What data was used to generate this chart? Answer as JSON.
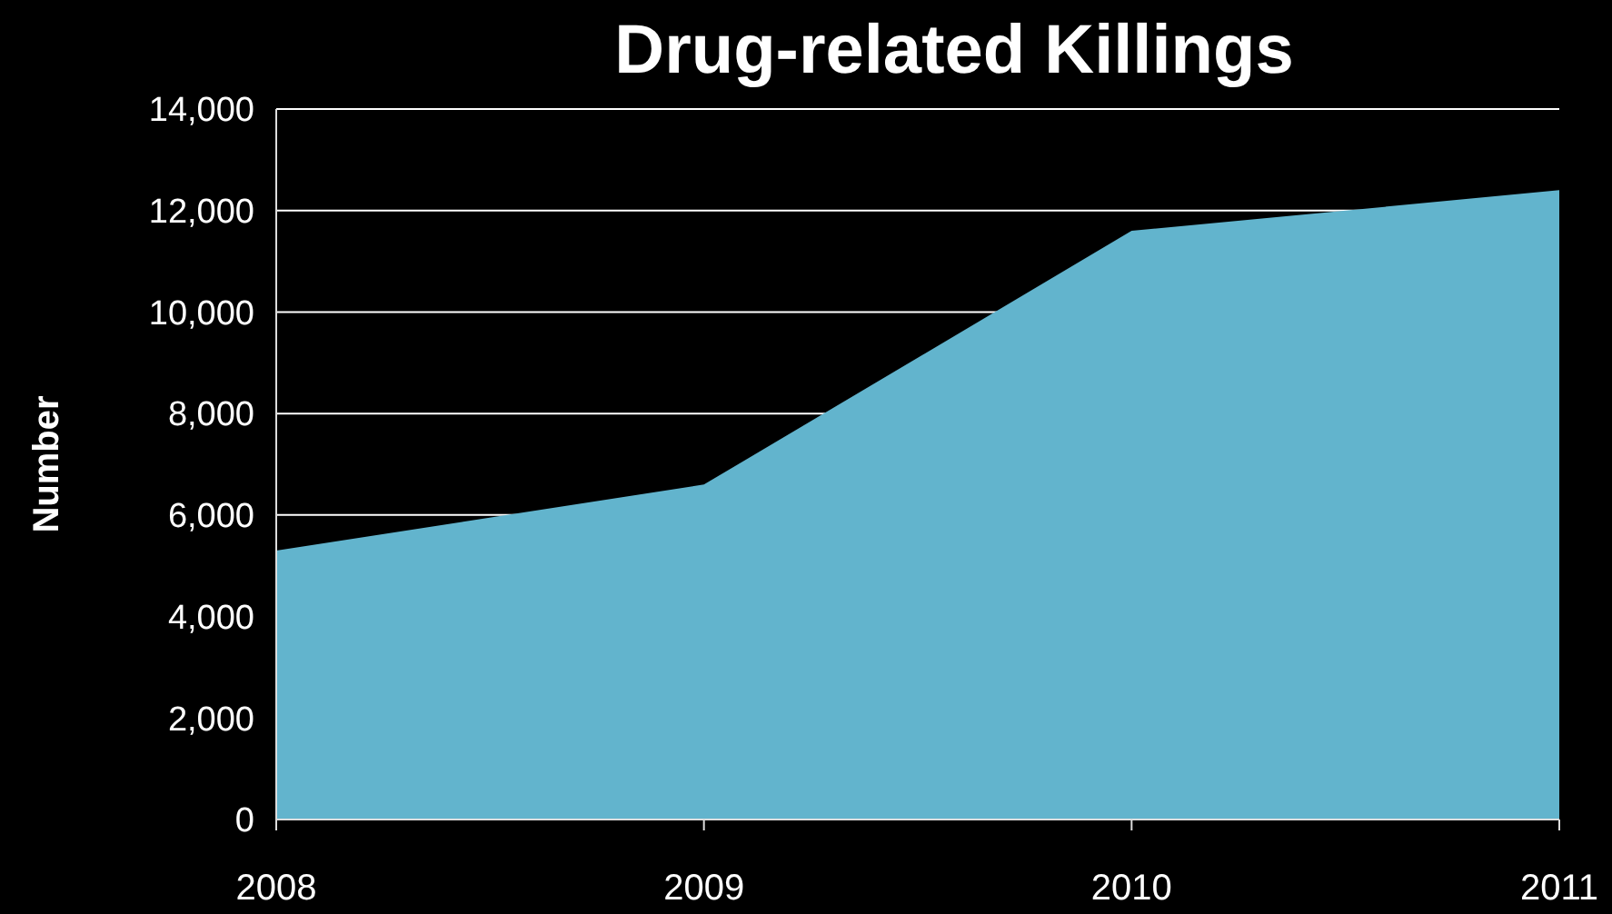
{
  "chart_data": {
    "type": "area",
    "title": "Drug-related Killings",
    "ylabel": "Number",
    "x": [
      2008,
      2009,
      2010,
      2011
    ],
    "series": [
      {
        "color": "#62b4cd",
        "values": [
          5300,
          6600,
          11600,
          12400
        ]
      }
    ],
    "xlim": [
      2008,
      2011
    ],
    "xticks": [
      {
        "value": 2008,
        "label": "2008"
      },
      {
        "value": 2009,
        "label": "2009"
      },
      {
        "value": 2010,
        "label": "2010"
      },
      {
        "value": 2011,
        "label": "2011"
      }
    ],
    "ylim": [
      0,
      14000
    ],
    "yticks": [
      {
        "value": 0,
        "label": "0"
      },
      {
        "value": 2000,
        "label": "2,000"
      },
      {
        "value": 4000,
        "label": "4,000"
      },
      {
        "value": 6000,
        "label": "6,000"
      },
      {
        "value": 8000,
        "label": "8,000"
      },
      {
        "value": 10000,
        "label": "10,000"
      },
      {
        "value": 12000,
        "label": "12,000"
      },
      {
        "value": 14000,
        "label": "14,000"
      }
    ],
    "grid": "y"
  }
}
